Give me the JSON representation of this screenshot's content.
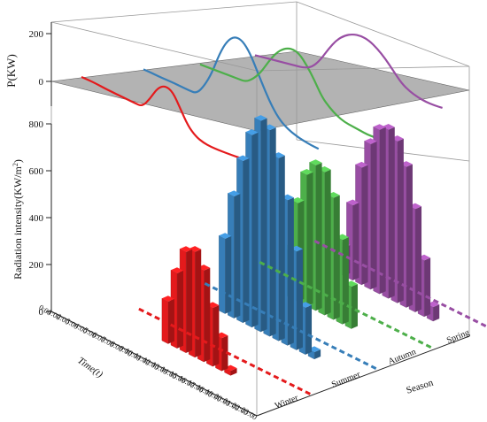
{
  "chart_data": {
    "type": "bar",
    "title": "",
    "top_panel": {
      "type": "line",
      "ylabel": "P(KW)",
      "yticks": [
        0,
        200
      ],
      "ylim": [
        -90,
        200
      ],
      "plane_level": 0,
      "x": [
        0,
        1,
        2,
        3,
        4,
        5,
        6,
        7,
        8,
        9,
        10,
        11,
        12,
        13,
        14,
        15,
        16,
        17,
        18,
        19,
        20,
        21,
        22,
        23
      ],
      "series": [
        {
          "season": "Winter",
          "color": "#e41a1c",
          "values": [
            -2,
            -5,
            -9,
            -14,
            -18,
            -22,
            -26,
            -30,
            -33,
            -10,
            20,
            30,
            20,
            -15,
            -50,
            -70,
            -80,
            -85,
            -88,
            -90,
            -92,
            -93,
            -94,
            -95
          ]
        },
        {
          "season": "Summer",
          "color": "#377eb8",
          "values": [
            -5,
            -8,
            -12,
            -15,
            -18,
            -22,
            -26,
            -28,
            -5,
            30,
            80,
            115,
            130,
            125,
            100,
            60,
            20,
            -15,
            -40,
            -55,
            -65,
            -72,
            -78,
            -82
          ]
        },
        {
          "season": "Autumn",
          "color": "#4daf4a",
          "values": [
            -10,
            -12,
            -14,
            -16,
            -18,
            -20,
            -22,
            -10,
            10,
            40,
            65,
            80,
            85,
            78,
            55,
            25,
            -10,
            -30,
            -45,
            -55,
            -60,
            -65,
            -70,
            -72
          ]
        },
        {
          "season": "Spring",
          "color": "#984ea3",
          "values": [
            -5,
            -6,
            -7,
            -8,
            -9,
            -10,
            -11,
            -5,
            15,
            45,
            70,
            85,
            92,
            92,
            85,
            70,
            50,
            25,
            0,
            -15,
            -25,
            -32,
            -36,
            -38
          ]
        }
      ]
    },
    "bar_panel": {
      "zlabel": "Radiation intensity(KW/m²)",
      "zticks": [
        0,
        200,
        400,
        600,
        800
      ],
      "zlim": [
        0,
        800
      ],
      "xlabel": "Time(t)",
      "ylabel": "Season",
      "time_labels": [
        "0:00",
        "1:00",
        "2:00",
        "3:00",
        "4:00",
        "5:00",
        "6:00",
        "7:00",
        "8:00",
        "9:00",
        "10:00",
        "11:00",
        "12:00",
        "13:00",
        "14:00",
        "15:00",
        "16:00",
        "17:00",
        "18:00",
        "19:00",
        "20:00",
        "21:00",
        "22:00",
        "23:00"
      ],
      "seasons": [
        "Winter",
        "Summer",
        "Autumn",
        "Spring"
      ],
      "series": [
        {
          "name": "Winter",
          "color": "#e41a1c",
          "values": [
            0,
            0,
            0,
            0,
            0,
            0,
            0,
            0,
            0,
            180,
            320,
            430,
            450,
            390,
            250,
            140,
            20,
            0,
            0,
            0,
            0,
            0,
            0,
            0
          ]
        },
        {
          "name": "Summer",
          "color": "#377eb8",
          "values": [
            0,
            0,
            0,
            0,
            0,
            0,
            0,
            0,
            320,
            520,
            690,
            820,
            900,
            880,
            780,
            620,
            420,
            200,
            30,
            0,
            0,
            0,
            0,
            0
          ]
        },
        {
          "name": "Autumn",
          "color": "#4daf4a",
          "values": [
            0,
            0,
            0,
            0,
            0,
            0,
            0,
            0,
            0,
            200,
            420,
            560,
            620,
            610,
            520,
            360,
            180,
            0,
            0,
            0,
            0,
            0,
            0,
            0
          ]
        },
        {
          "name": "Spring",
          "color": "#984ea3",
          "values": [
            0,
            0,
            0,
            0,
            0,
            0,
            0,
            0,
            0,
            120,
            320,
            500,
            620,
            700,
            720,
            690,
            600,
            440,
            240,
            60,
            0,
            0,
            0,
            0
          ]
        }
      ]
    }
  }
}
